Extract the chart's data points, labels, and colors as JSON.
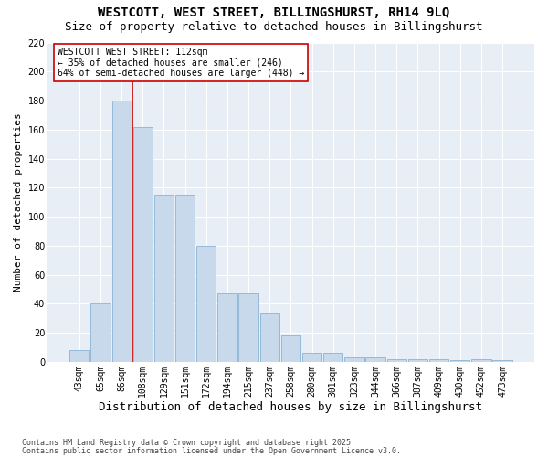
{
  "title": "WESTCOTT, WEST STREET, BILLINGSHURST, RH14 9LQ",
  "subtitle": "Size of property relative to detached houses in Billingshurst",
  "xlabel": "Distribution of detached houses by size in Billingshurst",
  "ylabel": "Number of detached properties",
  "categories": [
    "43sqm",
    "65sqm",
    "86sqm",
    "108sqm",
    "129sqm",
    "151sqm",
    "172sqm",
    "194sqm",
    "215sqm",
    "237sqm",
    "258sqm",
    "280sqm",
    "301sqm",
    "323sqm",
    "344sqm",
    "366sqm",
    "387sqm",
    "409sqm",
    "430sqm",
    "452sqm",
    "473sqm"
  ],
  "values": [
    8,
    40,
    180,
    162,
    115,
    115,
    80,
    47,
    47,
    34,
    18,
    6,
    6,
    3,
    3,
    2,
    2,
    2,
    1,
    2,
    1
  ],
  "bar_color": "#c8d9ec",
  "bar_edge_color": "#8ab4d4",
  "vline_color": "#cc0000",
  "vline_pos": 2.5,
  "annotation_title": "WESTCOTT WEST STREET: 112sqm",
  "annotation_line1": "← 35% of detached houses are smaller (246)",
  "annotation_line2": "64% of semi-detached houses are larger (448) →",
  "annotation_box_edge_color": "#cc0000",
  "footnote1": "Contains HM Land Registry data © Crown copyright and database right 2025.",
  "footnote2": "Contains public sector information licensed under the Open Government Licence v3.0.",
  "ylim": [
    0,
    220
  ],
  "yticks": [
    0,
    20,
    40,
    60,
    80,
    100,
    120,
    140,
    160,
    180,
    200,
    220
  ],
  "fig_bg_color": "#ffffff",
  "plot_bg_color": "#e8eef5",
  "grid_color": "#ffffff",
  "title_fontsize": 10,
  "subtitle_fontsize": 9,
  "xlabel_fontsize": 9,
  "ylabel_fontsize": 8,
  "tick_fontsize": 7,
  "annot_fontsize": 7,
  "footnote_fontsize": 6
}
